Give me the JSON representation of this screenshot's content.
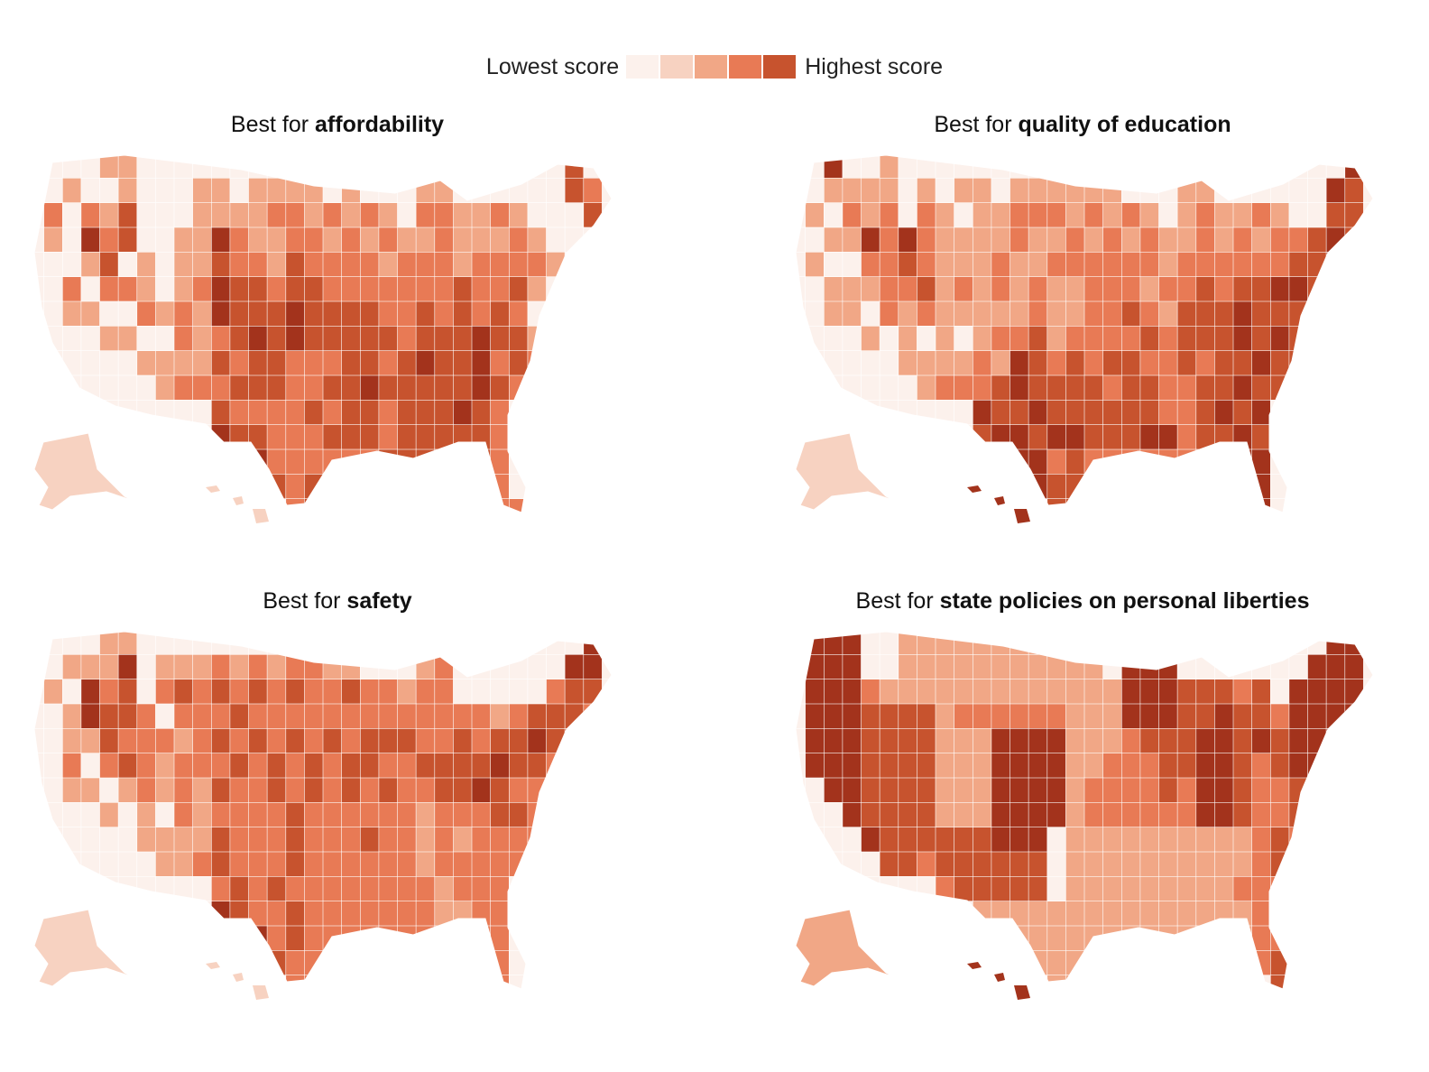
{
  "legend": {
    "low_label": "Lowest score",
    "high_label": "Highest score",
    "scale_colors": [
      "#fcf1ec",
      "#f7d2c1",
      "#f1a786",
      "#e87a55",
      "#c7532e",
      "#a3331c"
    ]
  },
  "maps": [
    {
      "title_prefix": "Best for",
      "title_bold": "affordability",
      "grid": [
        "00001100000000000000000000000300",
        "00100100011011110100011000000320",
        "02021300011112212121022112100030",
        "01042300114211221212112111210000",
        "00013010113221322221222122221000",
        "00202210124332332222222322310000",
        "00110021214333433332232323200000",
        "00001100212343433333233343310000",
        "00000011113233222332343342320000",
        "00000001222333223343333343200000",
        "00000000003222232332333432000000",
        "00000000004332223332333332000000",
        "00000000000342222223333232000000",
        "00000000000003230000000032000000",
        "00000000000000232000000002200000"
      ]
    },
    {
      "title_prefix": "Best for",
      "title_bold": "quality of education",
      "grid": [
        "00400100000000000000000000000040",
        "00111101011011111100011000000430",
        "01021202101122212121012112100330",
        "00114242111121121212112121223430",
        "01002232111211222222122222233400",
        "00111223121212112221223233443400",
        "00110212111112112232133343330000",
        "00001010101223122223233343430000",
        "00000011112143232332232334330000",
        "00000001222343333233223343300000",
        "00000000004334333333223434000000",
        "00000000003443443334423343000000",
        "00000000000344232222222344000000",
        "00000000000034330000000034000000",
        "00000000000000330000000004000000"
      ]
    },
    {
      "title_prefix": "Best for",
      "title_bold": "safety",
      "grid": [
        "00001100000000000000000000000040",
        "00111401112121221100012000000440",
        "01042302323232322322122000002330",
        "00143320222322222222222221233320",
        "00113222123232323233322323343300",
        "00202321222323232332233334332000",
        "00110121213223232323223343220000",
        "00001010212222322222212223320000",
        "00000011113222322232212122220000",
        "00000001123222322222212222200000",
        "00000000002323222222221222000000",
        "00000000004322322222221122000000",
        "00000000000342322222222122000000",
        "00000000000003220000000012000000",
        "00000000000000220000000002000000"
      ]
    },
    {
      "title_prefix": "Best for",
      "title_bold": "state policies on personal liberties",
      "grid": [
        "04440011111111111000000000000440",
        "04440011111111111044400000004440",
        "04442111111111111144433323044440",
        "04443333122222211144433433244440",
        "04443333111444411123334434344400",
        "04443333111444411222334432344400",
        "00443333111444412222324432233000",
        "00043333111444412222224432233000",
        "00004333333444011111111112323000",
        "00000332333333011111111112323000",
        "00000000233333011111111122223000",
        "00000000001111111111111112223000",
        "00000000000111111111111112233000",
        "00000000000001110000000002330000",
        "00000000000000110000000000330000"
      ]
    }
  ]
}
